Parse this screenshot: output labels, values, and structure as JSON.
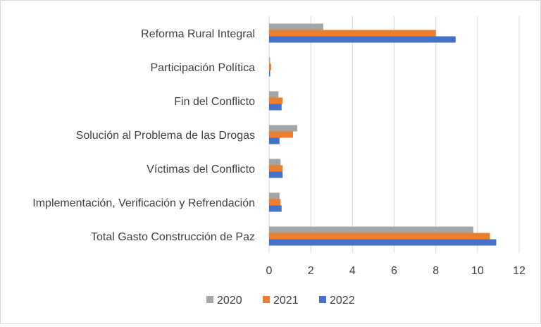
{
  "chart_data": {
    "type": "bar",
    "orientation": "horizontal",
    "categories": [
      "Reforma Rural Integral",
      "Participación Política",
      "Fin del Conflicto",
      "Solución al Problema de las Drogas",
      "Víctimas del Conflicto",
      "Implementación, Verificación y Refrendación",
      "Total Gasto Construcción de Paz"
    ],
    "series": [
      {
        "name": "2020",
        "color": "#a5a5a5",
        "values": [
          2.6,
          0.05,
          0.45,
          1.35,
          0.55,
          0.5,
          9.8
        ]
      },
      {
        "name": "2021",
        "color": "#ed7d31",
        "values": [
          8.0,
          0.1,
          0.65,
          1.15,
          0.65,
          0.55,
          10.6
        ]
      },
      {
        "name": "2022",
        "color": "#4472c4",
        "values": [
          8.95,
          0.05,
          0.6,
          0.5,
          0.65,
          0.6,
          10.9
        ]
      }
    ],
    "xlim": [
      0,
      12
    ],
    "xticks": [
      0,
      2,
      4,
      6,
      8,
      10,
      12
    ],
    "title": "",
    "xlabel": "",
    "ylabel": "",
    "grid": "vertical",
    "legend": "bottom"
  }
}
